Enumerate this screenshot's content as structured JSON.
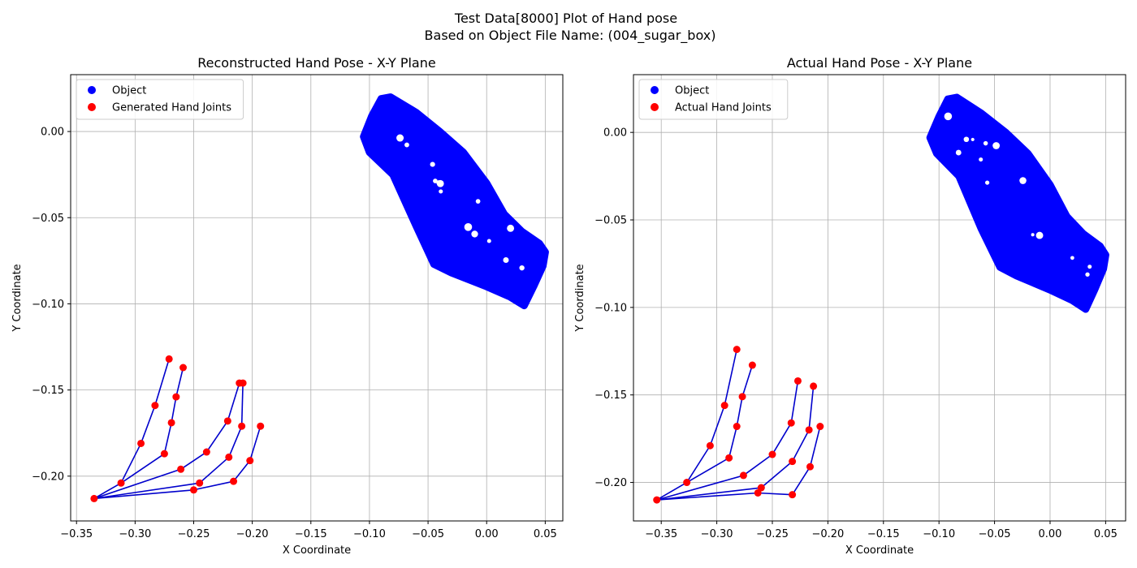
{
  "figure": {
    "title_line1": "Test Data[8000] Plot of Hand pose",
    "title_line2": "Based on Object File Name: (004_sugar_box)"
  },
  "colors": {
    "object": "#0000ff",
    "joints": "#ff0000",
    "bones": "#0000cc",
    "grid": "#b0b0b0"
  },
  "chart_data": [
    {
      "type": "scatter",
      "title": "Reconstructed Hand Pose - X-Y Plane",
      "xlabel": "X Coordinate",
      "ylabel": "Y Coordinate",
      "xlim": [
        -0.355,
        0.065
      ],
      "ylim": [
        -0.226,
        0.033
      ],
      "xticks": [
        -0.35,
        -0.3,
        -0.25,
        -0.2,
        -0.15,
        -0.1,
        -0.05,
        0.0,
        0.05
      ],
      "xtick_labels": [
        "−0.35",
        "−0.30",
        "−0.25",
        "−0.20",
        "−0.15",
        "−0.10",
        "−0.05",
        "0.00",
        "0.05"
      ],
      "yticks": [
        0.0,
        -0.05,
        -0.1,
        -0.15,
        -0.2
      ],
      "ytick_labels": [
        "0.00",
        "−0.05",
        "−0.10",
        "−0.15",
        "−0.20"
      ],
      "grid": true,
      "legend_position": "top-left",
      "legend": [
        "Object",
        "Generated Hand Joints"
      ],
      "object_region": [
        [
          -0.105,
          -0.003
        ],
        [
          -0.098,
          0.009
        ],
        [
          -0.09,
          0.019
        ],
        [
          -0.082,
          0.02
        ],
        [
          -0.06,
          0.011
        ],
        [
          -0.04,
          0.0
        ],
        [
          -0.02,
          -0.012
        ],
        [
          0.0,
          -0.03
        ],
        [
          0.015,
          -0.048
        ],
        [
          0.03,
          -0.058
        ],
        [
          0.045,
          -0.065
        ],
        [
          0.05,
          -0.07
        ],
        [
          0.048,
          -0.078
        ],
        [
          0.04,
          -0.09
        ],
        [
          0.032,
          -0.101
        ],
        [
          0.02,
          -0.096
        ],
        [
          0.0,
          -0.09
        ],
        [
          -0.03,
          -0.082
        ],
        [
          -0.045,
          -0.077
        ],
        [
          -0.06,
          -0.055
        ],
        [
          -0.08,
          -0.025
        ],
        [
          -0.1,
          -0.012
        ]
      ],
      "hand_joints": [
        [
          -0.335,
          -0.213
        ],
        [
          -0.312,
          -0.204
        ],
        [
          -0.295,
          -0.181
        ],
        [
          -0.283,
          -0.159
        ],
        [
          -0.271,
          -0.132
        ],
        [
          -0.275,
          -0.187
        ],
        [
          -0.269,
          -0.169
        ],
        [
          -0.265,
          -0.154
        ],
        [
          -0.259,
          -0.137
        ],
        [
          -0.261,
          -0.196
        ],
        [
          -0.239,
          -0.186
        ],
        [
          -0.221,
          -0.168
        ],
        [
          -0.211,
          -0.146
        ],
        [
          -0.245,
          -0.204
        ],
        [
          -0.22,
          -0.189
        ],
        [
          -0.209,
          -0.171
        ],
        [
          -0.208,
          -0.146
        ],
        [
          -0.25,
          -0.208
        ],
        [
          -0.216,
          -0.203
        ],
        [
          -0.202,
          -0.191
        ],
        [
          -0.193,
          -0.171
        ]
      ],
      "bones": [
        [
          0,
          1
        ],
        [
          1,
          2
        ],
        [
          2,
          3
        ],
        [
          3,
          4
        ],
        [
          1,
          5
        ],
        [
          5,
          6
        ],
        [
          6,
          7
        ],
        [
          7,
          8
        ],
        [
          0,
          9
        ],
        [
          9,
          10
        ],
        [
          10,
          11
        ],
        [
          11,
          12
        ],
        [
          0,
          13
        ],
        [
          13,
          14
        ],
        [
          14,
          15
        ],
        [
          15,
          16
        ],
        [
          0,
          17
        ],
        [
          17,
          18
        ],
        [
          18,
          19
        ],
        [
          19,
          20
        ]
      ]
    },
    {
      "type": "scatter",
      "title": "Actual Hand Pose - X-Y Plane",
      "xlabel": "X Coordinate",
      "ylabel": "Y Coordinate",
      "xlim": [
        -0.375,
        0.068
      ],
      "ylim": [
        -0.222,
        0.033
      ],
      "xticks": [
        -0.35,
        -0.3,
        -0.25,
        -0.2,
        -0.15,
        -0.1,
        -0.05,
        0.0,
        0.05
      ],
      "xtick_labels": [
        "−0.35",
        "−0.30",
        "−0.25",
        "−0.20",
        "−0.15",
        "−0.10",
        "−0.05",
        "0.00",
        "0.05"
      ],
      "yticks": [
        0.0,
        -0.05,
        -0.1,
        -0.15,
        -0.2
      ],
      "ytick_labels": [
        "0.00",
        "−0.05",
        "−0.10",
        "−0.15",
        "−0.20"
      ],
      "grid": true,
      "legend_position": "top-left",
      "legend": [
        "Object",
        "Actual Hand Joints"
      ],
      "object_region": [
        [
          -0.108,
          -0.003
        ],
        [
          -0.1,
          0.009
        ],
        [
          -0.092,
          0.019
        ],
        [
          -0.084,
          0.02
        ],
        [
          -0.062,
          0.011
        ],
        [
          -0.04,
          0.0
        ],
        [
          -0.02,
          -0.012
        ],
        [
          0.0,
          -0.03
        ],
        [
          0.015,
          -0.048
        ],
        [
          0.03,
          -0.058
        ],
        [
          0.045,
          -0.065
        ],
        [
          0.05,
          -0.07
        ],
        [
          0.048,
          -0.078
        ],
        [
          0.04,
          -0.09
        ],
        [
          0.032,
          -0.101
        ],
        [
          0.02,
          -0.096
        ],
        [
          0.0,
          -0.09
        ],
        [
          -0.03,
          -0.082
        ],
        [
          -0.045,
          -0.077
        ],
        [
          -0.062,
          -0.055
        ],
        [
          -0.082,
          -0.025
        ],
        [
          -0.102,
          -0.012
        ]
      ],
      "hand_joints": [
        [
          -0.354,
          -0.21
        ],
        [
          -0.327,
          -0.2
        ],
        [
          -0.306,
          -0.179
        ],
        [
          -0.293,
          -0.156
        ],
        [
          -0.282,
          -0.124
        ],
        [
          -0.289,
          -0.186
        ],
        [
          -0.282,
          -0.168
        ],
        [
          -0.277,
          -0.151
        ],
        [
          -0.268,
          -0.133
        ],
        [
          -0.276,
          -0.196
        ],
        [
          -0.25,
          -0.184
        ],
        [
          -0.233,
          -0.166
        ],
        [
          -0.227,
          -0.142
        ],
        [
          -0.26,
          -0.203
        ],
        [
          -0.232,
          -0.188
        ],
        [
          -0.217,
          -0.17
        ],
        [
          -0.213,
          -0.145
        ],
        [
          -0.263,
          -0.206
        ],
        [
          -0.232,
          -0.207
        ],
        [
          -0.216,
          -0.191
        ],
        [
          -0.207,
          -0.168
        ]
      ],
      "bones": [
        [
          0,
          1
        ],
        [
          1,
          2
        ],
        [
          2,
          3
        ],
        [
          3,
          4
        ],
        [
          1,
          5
        ],
        [
          5,
          6
        ],
        [
          6,
          7
        ],
        [
          7,
          8
        ],
        [
          0,
          9
        ],
        [
          9,
          10
        ],
        [
          10,
          11
        ],
        [
          11,
          12
        ],
        [
          0,
          13
        ],
        [
          13,
          14
        ],
        [
          14,
          15
        ],
        [
          15,
          16
        ],
        [
          0,
          17
        ],
        [
          17,
          18
        ],
        [
          18,
          19
        ],
        [
          19,
          20
        ]
      ]
    }
  ]
}
